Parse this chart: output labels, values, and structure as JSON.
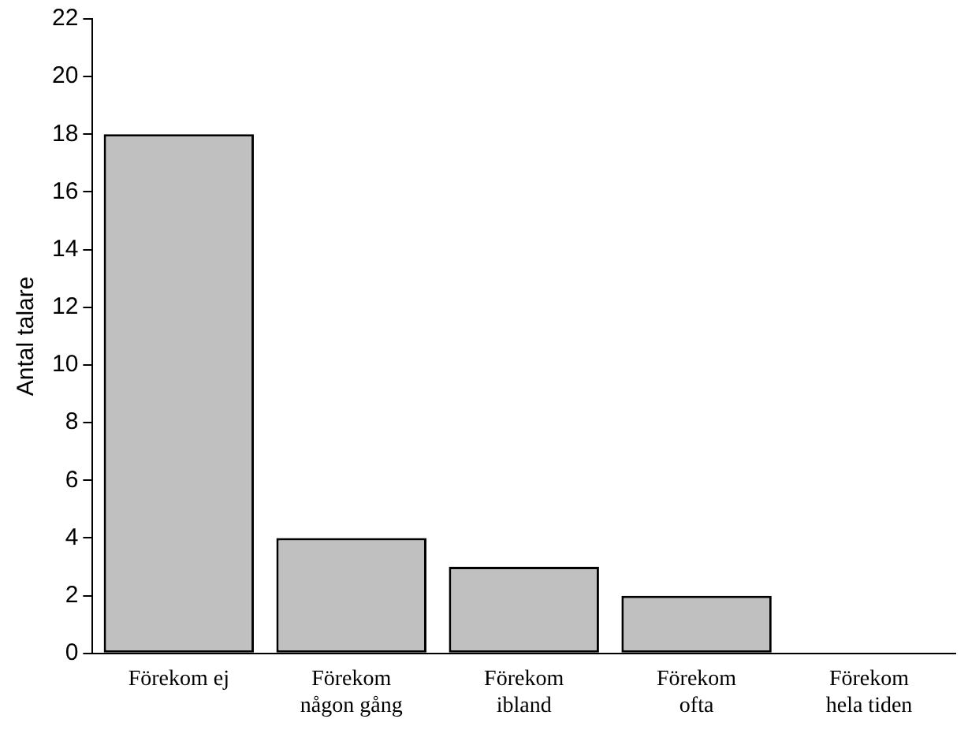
{
  "chart_data": {
    "type": "bar",
    "ylabel": "Antal talare",
    "categories": [
      "Förekom ej",
      "Förekom\nnågon gång",
      "Förekom\nibland",
      "Förekom\nofta",
      "Förekom\nhela tiden"
    ],
    "values": [
      18,
      4,
      3,
      2,
      0
    ],
    "color": "#c0c0c0",
    "ylim": [
      0,
      22
    ],
    "yticks": [
      0,
      2,
      4,
      6,
      8,
      10,
      12,
      14,
      16,
      18,
      20,
      22
    ],
    "grid": false,
    "legend": false
  }
}
